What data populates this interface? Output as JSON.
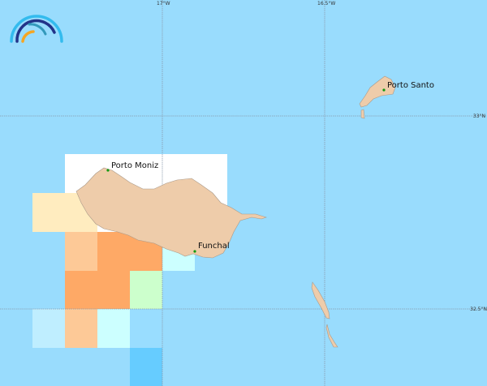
{
  "map": {
    "colors": {
      "ocean": "#99dcfd",
      "land": "#eeccaa",
      "coast": "#aa9988",
      "graticule": "#8899aa",
      "town_marker": "#119911"
    },
    "graticule": {
      "longitudes": [
        {
          "label": "17°W"
        },
        {
          "label": "16.5°W"
        }
      ],
      "latitudes": [
        {
          "label": "33°N"
        },
        {
          "label": "32.5°N"
        }
      ]
    },
    "places": [
      {
        "name": "Porto Moniz"
      },
      {
        "name": "Funchal"
      },
      {
        "name": "Porto Santo"
      }
    ],
    "grid_cell_colors": [
      "#ffffff",
      "#ffecbf",
      "#fdc997",
      "#fea966",
      "#ccffcc",
      "#ccffff",
      "#bfeeff",
      "#99ddff",
      "#66ccff"
    ],
    "logo": {
      "icon": "rainbow-arcs-logo"
    }
  }
}
